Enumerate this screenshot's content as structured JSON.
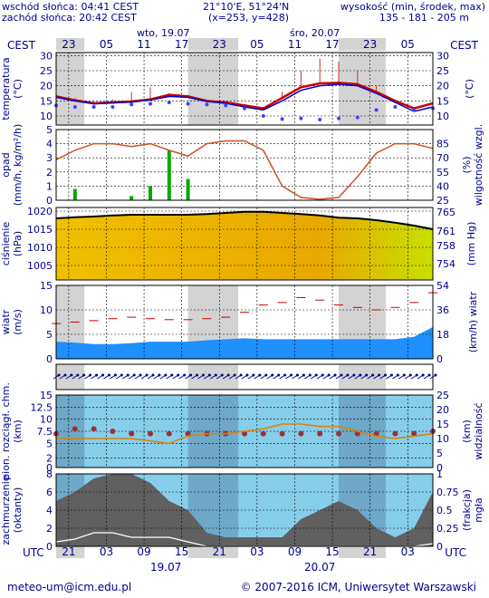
{
  "header": {
    "sunrise": "wschód słońca: 04:41 CEST",
    "sunset": "zachód słońca: 20:42 CEST",
    "coords": "21°10'E, 51°24'N",
    "grid": "(x=253,  y=428)",
    "elevation_title": "wysokość (min, środek, max)",
    "elevation_values": "135 - 181 - 205 m",
    "tz_left": "CEST",
    "tz_right": "CEST",
    "day1": "wto, 19.07",
    "day2": "śro, 20.07",
    "top_hours": [
      "23",
      "05",
      "11",
      "17",
      "23",
      "05",
      "11",
      "17",
      "23",
      "05"
    ]
  },
  "footer": {
    "tz_left": "UTC",
    "tz_right": "UTC",
    "bottom_hours": [
      "21",
      "03",
      "09",
      "15",
      "21",
      "03",
      "09",
      "15",
      "21",
      "03"
    ],
    "date1": "19.07",
    "date2": "20.07",
    "email": "meteo-um@icm.edu.pl",
    "copyright": "© 2007-2016 ICM, Uniwersytet Warszawski"
  },
  "colors": {
    "night_band": "#d3d3d3",
    "temperature": "#cc0000",
    "temperature_smooth": "#0000cc",
    "dew_point": "#4040ff",
    "humidity": "#d05020",
    "precip": "#00aa00",
    "pressure_fill": "#f0c000",
    "wind_line": "#cc0000",
    "wind_fill": "#1e90ff",
    "visibility": "#e08000",
    "cloud_base": "#993333",
    "sky": "#87ceeb",
    "clouds": "#606060"
  },
  "chart_data": [
    {
      "type": "line",
      "panel": "temperature",
      "ylabel_left": "temperatura (°C)",
      "ylabel_right": "(°C)",
      "ylim": [
        7,
        31
      ],
      "ticks": [
        10,
        15,
        20,
        25,
        30
      ],
      "x": [
        0,
        3,
        6,
        9,
        12,
        15,
        18,
        21,
        24,
        27,
        30,
        33,
        36,
        39,
        42,
        45,
        48,
        51,
        54,
        57,
        60
      ],
      "series": [
        {
          "name": "temperature",
          "values": [
            16.5,
            15.2,
            14.2,
            14.5,
            14.8,
            15.5,
            17,
            16.5,
            15,
            14.5,
            13.5,
            12.5,
            16,
            19.5,
            20.8,
            21,
            20.5,
            18,
            15,
            12.5,
            14.2
          ]
        },
        {
          "name": "temperature_smooth",
          "values": [
            16.2,
            15,
            14,
            14.3,
            14.6,
            15.3,
            16.5,
            16.2,
            14.8,
            14.2,
            13,
            12,
            15,
            18.5,
            20,
            20.5,
            20,
            17.5,
            14.5,
            11.5,
            13
          ]
        },
        {
          "name": "dew_point",
          "values": [
            13.5,
            13,
            13,
            13,
            13.8,
            14,
            14.5,
            14,
            13.8,
            13.5,
            12.5,
            10,
            9,
            9.2,
            8.8,
            9.2,
            9.5,
            12,
            13,
            12,
            12.5
          ]
        },
        {
          "name": "max",
          "values": [
            16.5,
            16,
            15,
            15.5,
            18,
            19.5,
            17.5,
            17,
            15,
            14.5,
            14,
            13,
            18,
            25,
            29,
            28,
            25,
            20,
            15,
            13,
            15
          ]
        }
      ]
    },
    {
      "type": "bar",
      "panel": "precipitation_humidity",
      "ylabel_left": "opad (mm/h, kg/m²/h)",
      "ylabel_right": "(%) wilgotność wzgl.",
      "ylim": [
        0,
        5
      ],
      "ticks": [
        0,
        1,
        2,
        3,
        4,
        5
      ],
      "ylim_right": [
        25,
        100
      ],
      "ticks_right": [
        25,
        40,
        55,
        70,
        85
      ],
      "x": [
        0,
        3,
        6,
        9,
        12,
        15,
        18,
        21,
        24,
        27,
        30,
        33,
        36,
        39,
        42,
        45,
        48,
        51,
        54,
        57,
        60
      ],
      "series": [
        {
          "name": "humidity",
          "values": [
            68,
            78,
            85,
            85,
            82,
            85,
            78,
            72,
            85,
            88,
            88,
            78,
            40,
            28,
            26,
            28,
            50,
            75,
            85,
            85,
            80
          ]
        },
        {
          "name": "precipitation",
          "values": [
            0,
            0.8,
            0,
            0,
            0.3,
            1,
            3.5,
            1.5,
            0,
            0,
            0,
            0,
            0,
            0,
            0,
            0,
            0,
            0,
            0,
            0,
            0
          ]
        }
      ]
    },
    {
      "type": "area",
      "panel": "pressure",
      "ylabel_left": "ciśnienie (hPa)",
      "ylabel_right": "(mm Hg)",
      "ylim": [
        1001,
        1021
      ],
      "ticks": [
        1005,
        1010,
        1015,
        1020
      ],
      "ticks_right": [
        754,
        758,
        761,
        765
      ],
      "x": [
        0,
        3,
        6,
        9,
        12,
        15,
        18,
        21,
        24,
        27,
        30,
        33,
        36,
        39,
        42,
        45,
        48,
        51,
        54,
        57,
        60
      ],
      "series": [
        {
          "name": "pressure",
          "values": [
            1018,
            1018.3,
            1018.5,
            1018.8,
            1019,
            1019,
            1019,
            1019,
            1019.2,
            1019.5,
            1019.8,
            1019.8,
            1019.5,
            1019.2,
            1018.8,
            1018.2,
            1018,
            1017.5,
            1016.8,
            1016,
            1015
          ]
        }
      ]
    },
    {
      "type": "area",
      "panel": "wind",
      "ylabel_left": "wiatr (m/s)",
      "ylabel_right": "(km/h) wiatr",
      "ylim": [
        0,
        15
      ],
      "ticks": [
        0,
        5,
        10,
        15
      ],
      "ticks_right": [
        0,
        18,
        36,
        54
      ],
      "x": [
        0,
        3,
        6,
        9,
        12,
        15,
        18,
        21,
        24,
        27,
        30,
        33,
        36,
        39,
        42,
        45,
        48,
        51,
        54,
        57,
        60
      ],
      "series": [
        {
          "name": "gusts",
          "values": [
            7.2,
            7.5,
            7.8,
            8.2,
            8.5,
            8.2,
            8,
            8,
            8.2,
            8.5,
            9.5,
            11,
            11.5,
            12.5,
            12,
            11,
            10.5,
            10,
            10.5,
            11.5,
            13.5
          ]
        },
        {
          "name": "wind",
          "values": [
            3.5,
            3.3,
            3,
            3,
            3.2,
            3.5,
            3.5,
            3.5,
            3.8,
            4,
            4.2,
            4,
            4,
            4,
            4,
            4,
            4,
            4,
            4,
            4.5,
            6.5
          ]
        }
      ]
    },
    {
      "type": "line",
      "panel": "visibility_cloudbase",
      "ylabel_left": "pion. rozciągł. chm. (km)",
      "ylabel_right": "(km) widzialność",
      "ylim": [
        0,
        15
      ],
      "ticks": [
        0.0,
        2.0,
        5.0,
        7.5,
        10.0,
        12.5,
        15.0
      ],
      "ticks_right": [
        0,
        5,
        10,
        15,
        20,
        25
      ],
      "x": [
        0,
        3,
        6,
        9,
        12,
        15,
        18,
        21,
        24,
        27,
        30,
        33,
        36,
        39,
        42,
        45,
        48,
        51,
        54,
        57,
        60
      ],
      "series": [
        {
          "name": "visibility",
          "values": [
            6,
            6,
            6,
            6,
            6,
            5.5,
            5,
            6.5,
            7,
            7,
            7.5,
            8,
            9,
            9,
            8.5,
            8.5,
            7.5,
            6.5,
            6,
            6.5,
            7
          ]
        },
        {
          "name": "cloud_base",
          "values": [
            7,
            8,
            8,
            7.5,
            7,
            7,
            7,
            7,
            7,
            7,
            7,
            7,
            7,
            7,
            7,
            7,
            7,
            7,
            7,
            7,
            7.5
          ]
        }
      ]
    },
    {
      "type": "area",
      "panel": "clouds_fog",
      "ylabel_left": "zachmurzenie (oktanty)",
      "ylabel_right": "(frakcja) mgła",
      "ylim": [
        0,
        8
      ],
      "ticks": [
        0,
        2,
        4,
        6,
        8
      ],
      "ticks_right": [
        0,
        0.25,
        0.5,
        0.75,
        1
      ],
      "x": [
        0,
        3,
        6,
        9,
        12,
        15,
        18,
        21,
        24,
        27,
        30,
        33,
        36,
        39,
        42,
        45,
        48,
        51,
        54,
        57,
        60
      ],
      "series": [
        {
          "name": "total_cloud",
          "values": [
            5,
            6,
            7.5,
            8,
            8,
            7,
            5,
            4,
            1.5,
            1,
            1,
            1,
            1,
            3,
            4,
            5,
            4,
            2,
            1,
            2,
            6
          ]
        },
        {
          "name": "low_cloud",
          "values": [
            0.5,
            0.8,
            1.5,
            1.5,
            1,
            1,
            1,
            0.5,
            0,
            0,
            0,
            0,
            0,
            0,
            0,
            0,
            0,
            0,
            0,
            0,
            0.3
          ]
        }
      ]
    }
  ]
}
